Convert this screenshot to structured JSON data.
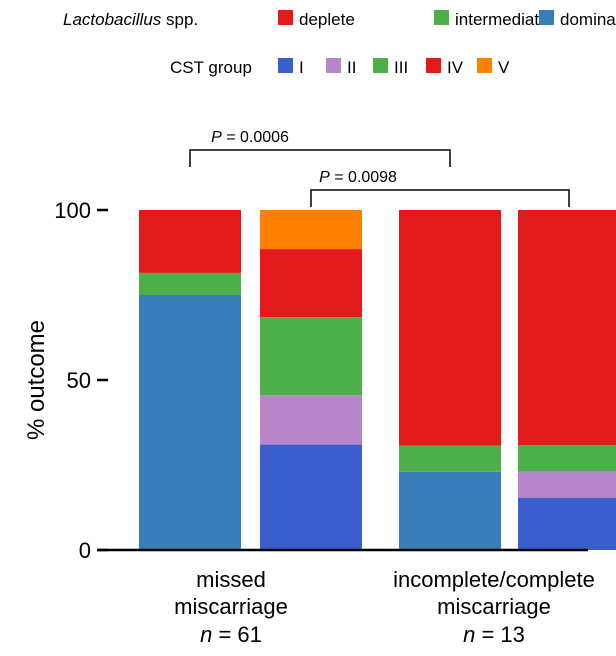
{
  "chart_data": {
    "type": "bar",
    "subtype": "stacked-percent",
    "ylabel": "% outcome",
    "ylim": [
      0,
      100
    ],
    "yticks": [
      "0",
      "50",
      "100"
    ],
    "legends": [
      {
        "title_italic": "Lactobacillus",
        "title_rest": " spp.",
        "entries": [
          {
            "key": "deplete",
            "label": "deplete",
            "color": "#e31a1c"
          },
          {
            "key": "intermediate",
            "label": "intermediate",
            "color": "#4daf4a"
          },
          {
            "key": "dominant",
            "label": "dominant",
            "color": "#377eb8"
          }
        ]
      },
      {
        "title_italic": "",
        "title_rest": "CST group",
        "entries": [
          {
            "key": "I",
            "label": "I",
            "color": "#3a5fcd"
          },
          {
            "key": "II",
            "label": "II",
            "color": "#b886c8"
          },
          {
            "key": "III",
            "label": "III",
            "color": "#4daf4a"
          },
          {
            "key": "IV",
            "label": "IV",
            "color": "#e31a1c"
          },
          {
            "key": "V",
            "label": "V",
            "color": "#ff7f00"
          }
        ]
      }
    ],
    "groups": [
      {
        "line1": "missed",
        "line2": "miscarriage",
        "n_prefix": "n",
        "n_suffix": " = 61"
      },
      {
        "line1": "incomplete/complete",
        "line2": "miscarriage",
        "n_prefix": "n",
        "n_suffix": " = 13"
      }
    ],
    "bars": [
      {
        "group": 0,
        "classification": "Lactobacillus spp.",
        "segments": [
          {
            "key": "dominant",
            "value": 75
          },
          {
            "key": "intermediate",
            "value": 6.5
          },
          {
            "key": "deplete",
            "value": 18.5
          }
        ]
      },
      {
        "group": 0,
        "classification": "CST group",
        "segments": [
          {
            "key": "I",
            "value": 31
          },
          {
            "key": "II",
            "value": 14.5
          },
          {
            "key": "III",
            "value": 23
          },
          {
            "key": "IV",
            "value": 20
          },
          {
            "key": "V",
            "value": 11.5
          }
        ]
      },
      {
        "group": 1,
        "classification": "Lactobacillus spp.",
        "segments": [
          {
            "key": "dominant",
            "value": 23
          },
          {
            "key": "intermediate",
            "value": 7.7
          },
          {
            "key": "deplete",
            "value": 69.3
          }
        ]
      },
      {
        "group": 1,
        "classification": "CST group",
        "segments": [
          {
            "key": "I",
            "value": 15.4
          },
          {
            "key": "II",
            "value": 7.7
          },
          {
            "key": "III",
            "value": 7.7
          },
          {
            "key": "IV",
            "value": 69.2
          },
          {
            "key": "V",
            "value": 0
          }
        ]
      }
    ],
    "annotations": [
      {
        "from_bar": 0,
        "to_bar": 2,
        "p_label": "P",
        "p_text": " = 0.0006"
      },
      {
        "from_bar": 1,
        "to_bar": 3,
        "p_label": "P",
        "p_text": " = 0.0098"
      }
    ]
  }
}
